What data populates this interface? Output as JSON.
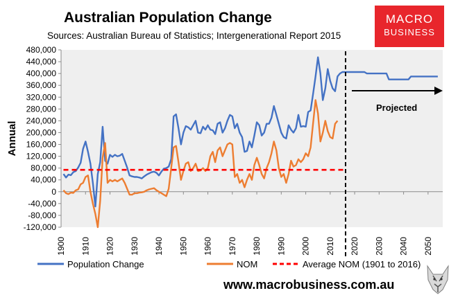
{
  "chart_data": {
    "type": "line",
    "title": "Australian Population Change",
    "subtitle": "Sources: Australian Bureau of Statistics; Intergenerational Report 2015",
    "ylabel": "Annual",
    "ylim": [
      -120000,
      480000
    ],
    "yticks": [
      "480,000",
      "440,000",
      "400,000",
      "360,000",
      "320,000",
      "280,000",
      "240,000",
      "200,000",
      "160,000",
      "120,000",
      "80,000",
      "40,000",
      "0",
      "-40,000",
      "-80,000",
      "-120,000"
    ],
    "xlim": [
      1900,
      2056
    ],
    "xticks": [
      "1900",
      "1910",
      "1920",
      "1930",
      "1940",
      "1950",
      "1960",
      "1970",
      "1980",
      "1990",
      "2000",
      "2010",
      "2020",
      "2030",
      "2040",
      "2050"
    ],
    "grid": false,
    "legend_position": "bottom",
    "annotation": "Projected",
    "projection_start": 2016,
    "series": [
      {
        "name": "Population Change",
        "color": "#4472c4",
        "points": [
          [
            1901,
            60000
          ],
          [
            1902,
            48000
          ],
          [
            1903,
            58000
          ],
          [
            1904,
            56000
          ],
          [
            1905,
            66000
          ],
          [
            1906,
            70000
          ],
          [
            1907,
            82000
          ],
          [
            1908,
            98000
          ],
          [
            1909,
            145000
          ],
          [
            1910,
            170000
          ],
          [
            1911,
            135000
          ],
          [
            1912,
            95000
          ],
          [
            1913,
            30000
          ],
          [
            1914,
            -50000
          ],
          [
            1915,
            60000
          ],
          [
            1916,
            100000
          ],
          [
            1917,
            220000
          ],
          [
            1918,
            105000
          ],
          [
            1919,
            95000
          ],
          [
            1920,
            125000
          ],
          [
            1921,
            118000
          ],
          [
            1922,
            125000
          ],
          [
            1923,
            120000
          ],
          [
            1924,
            122000
          ],
          [
            1925,
            128000
          ],
          [
            1926,
            105000
          ],
          [
            1927,
            82000
          ],
          [
            1928,
            55000
          ],
          [
            1929,
            52000
          ],
          [
            1930,
            50000
          ],
          [
            1931,
            50000
          ],
          [
            1932,
            48000
          ],
          [
            1933,
            45000
          ],
          [
            1934,
            52000
          ],
          [
            1935,
            58000
          ],
          [
            1936,
            62000
          ],
          [
            1937,
            66000
          ],
          [
            1938,
            68000
          ],
          [
            1939,
            64000
          ],
          [
            1940,
            55000
          ],
          [
            1941,
            68000
          ],
          [
            1942,
            78000
          ],
          [
            1943,
            80000
          ],
          [
            1944,
            85000
          ],
          [
            1945,
            110000
          ],
          [
            1946,
            255000
          ],
          [
            1947,
            262000
          ],
          [
            1948,
            215000
          ],
          [
            1949,
            160000
          ],
          [
            1950,
            200000
          ],
          [
            1951,
            222000
          ],
          [
            1952,
            218000
          ],
          [
            1953,
            210000
          ],
          [
            1954,
            225000
          ],
          [
            1955,
            240000
          ],
          [
            1956,
            200000
          ],
          [
            1957,
            198000
          ],
          [
            1958,
            220000
          ],
          [
            1959,
            210000
          ],
          [
            1960,
            225000
          ],
          [
            1961,
            210000
          ],
          [
            1962,
            208000
          ],
          [
            1963,
            195000
          ],
          [
            1964,
            230000
          ],
          [
            1965,
            235000
          ],
          [
            1966,
            200000
          ],
          [
            1967,
            215000
          ],
          [
            1968,
            240000
          ],
          [
            1969,
            260000
          ],
          [
            1970,
            255000
          ],
          [
            1971,
            215000
          ],
          [
            1972,
            230000
          ],
          [
            1973,
            200000
          ],
          [
            1974,
            185000
          ],
          [
            1975,
            135000
          ],
          [
            1976,
            138000
          ],
          [
            1977,
            170000
          ],
          [
            1978,
            150000
          ],
          [
            1979,
            190000
          ],
          [
            1980,
            235000
          ],
          [
            1981,
            225000
          ],
          [
            1982,
            190000
          ],
          [
            1983,
            200000
          ],
          [
            1984,
            230000
          ],
          [
            1985,
            230000
          ],
          [
            1986,
            250000
          ],
          [
            1987,
            290000
          ],
          [
            1988,
            260000
          ],
          [
            1989,
            230000
          ],
          [
            1990,
            200000
          ],
          [
            1991,
            185000
          ],
          [
            1992,
            180000
          ],
          [
            1993,
            225000
          ],
          [
            1994,
            210000
          ],
          [
            1995,
            200000
          ],
          [
            1996,
            215000
          ],
          [
            1997,
            260000
          ],
          [
            1998,
            220000
          ],
          [
            1999,
            222000
          ],
          [
            2000,
            220000
          ],
          [
            2001,
            270000
          ],
          [
            2002,
            275000
          ],
          [
            2003,
            330000
          ],
          [
            2004,
            390000
          ],
          [
            2005,
            455000
          ],
          [
            2006,
            400000
          ],
          [
            2007,
            310000
          ],
          [
            2008,
            350000
          ],
          [
            2009,
            415000
          ],
          [
            2010,
            375000
          ],
          [
            2011,
            350000
          ],
          [
            2012,
            340000
          ],
          [
            2013,
            390000
          ],
          [
            2014,
            400000
          ],
          [
            2015,
            405000
          ],
          [
            2016,
            405000
          ],
          [
            2024,
            405000
          ],
          [
            2025,
            400000
          ],
          [
            2033,
            400000
          ],
          [
            2034,
            380000
          ],
          [
            2042,
            380000
          ],
          [
            2043,
            390000
          ],
          [
            2054,
            390000
          ]
        ]
      },
      {
        "name": "NOM",
        "color": "#ed7d31",
        "points": [
          [
            1901,
            5000
          ],
          [
            1902,
            -5000
          ],
          [
            1903,
            -8000
          ],
          [
            1904,
            -3000
          ],
          [
            1905,
            -4000
          ],
          [
            1906,
            5000
          ],
          [
            1907,
            8000
          ],
          [
            1908,
            25000
          ],
          [
            1909,
            30000
          ],
          [
            1910,
            50000
          ],
          [
            1911,
            55000
          ],
          [
            1912,
            0
          ],
          [
            1913,
            -40000
          ],
          [
            1914,
            -75000
          ],
          [
            1915,
            -120000
          ],
          [
            1916,
            -30000
          ],
          [
            1917,
            115000
          ],
          [
            1918,
            165000
          ],
          [
            1919,
            30000
          ],
          [
            1920,
            40000
          ],
          [
            1921,
            35000
          ],
          [
            1922,
            40000
          ],
          [
            1923,
            35000
          ],
          [
            1924,
            40000
          ],
          [
            1925,
            45000
          ],
          [
            1926,
            30000
          ],
          [
            1927,
            10000
          ],
          [
            1928,
            -10000
          ],
          [
            1929,
            -10000
          ],
          [
            1930,
            -5000
          ],
          [
            1931,
            -5000
          ],
          [
            1932,
            -3000
          ],
          [
            1933,
            -2000
          ],
          [
            1934,
            0
          ],
          [
            1935,
            5000
          ],
          [
            1936,
            8000
          ],
          [
            1937,
            10000
          ],
          [
            1938,
            12000
          ],
          [
            1939,
            5000
          ],
          [
            1940,
            0
          ],
          [
            1941,
            -5000
          ],
          [
            1942,
            -10000
          ],
          [
            1943,
            -15000
          ],
          [
            1944,
            10000
          ],
          [
            1945,
            80000
          ],
          [
            1946,
            150000
          ],
          [
            1947,
            155000
          ],
          [
            1948,
            100000
          ],
          [
            1949,
            40000
          ],
          [
            1950,
            70000
          ],
          [
            1951,
            95000
          ],
          [
            1952,
            100000
          ],
          [
            1953,
            70000
          ],
          [
            1954,
            80000
          ],
          [
            1955,
            95000
          ],
          [
            1956,
            70000
          ],
          [
            1957,
            72000
          ],
          [
            1958,
            80000
          ],
          [
            1959,
            70000
          ],
          [
            1960,
            80000
          ],
          [
            1961,
            120000
          ],
          [
            1962,
            135000
          ],
          [
            1963,
            100000
          ],
          [
            1964,
            140000
          ],
          [
            1965,
            150000
          ],
          [
            1966,
            120000
          ],
          [
            1967,
            140000
          ],
          [
            1968,
            160000
          ],
          [
            1969,
            165000
          ],
          [
            1970,
            160000
          ],
          [
            1971,
            50000
          ],
          [
            1972,
            60000
          ],
          [
            1973,
            30000
          ],
          [
            1974,
            40000
          ],
          [
            1975,
            15000
          ],
          [
            1976,
            40000
          ],
          [
            1977,
            60000
          ],
          [
            1978,
            40000
          ],
          [
            1979,
            90000
          ],
          [
            1980,
            115000
          ],
          [
            1981,
            90000
          ],
          [
            1982,
            60000
          ],
          [
            1983,
            45000
          ],
          [
            1984,
            80000
          ],
          [
            1985,
            100000
          ],
          [
            1986,
            130000
          ],
          [
            1987,
            170000
          ],
          [
            1988,
            140000
          ],
          [
            1989,
            80000
          ],
          [
            1990,
            50000
          ],
          [
            1991,
            60000
          ],
          [
            1992,
            30000
          ],
          [
            1993,
            60000
          ],
          [
            1994,
            105000
          ],
          [
            1995,
            85000
          ],
          [
            1996,
            90000
          ],
          [
            1997,
            110000
          ],
          [
            1998,
            100000
          ],
          [
            1999,
            110000
          ],
          [
            2000,
            130000
          ],
          [
            2001,
            120000
          ],
          [
            2002,
            150000
          ],
          [
            2003,
            230000
          ],
          [
            2004,
            310000
          ],
          [
            2005,
            265000
          ],
          [
            2006,
            170000
          ],
          [
            2007,
            200000
          ],
          [
            2008,
            240000
          ],
          [
            2009,
            205000
          ],
          [
            2010,
            185000
          ],
          [
            2011,
            180000
          ],
          [
            2012,
            230000
          ],
          [
            2013,
            240000
          ]
        ]
      },
      {
        "name": "Average NOM (1901 to 2016)",
        "color": "#ff0000",
        "dashed": true,
        "points": [
          [
            1901,
            74000
          ],
          [
            2016,
            74000
          ]
        ]
      }
    ]
  },
  "logo": {
    "line1": "MACRO",
    "line2": "BUSINESS"
  },
  "footer": "www.macrobusiness.com.au",
  "colors": {
    "plot_bg": "#efefef",
    "logo_bg": "#e8262c"
  }
}
